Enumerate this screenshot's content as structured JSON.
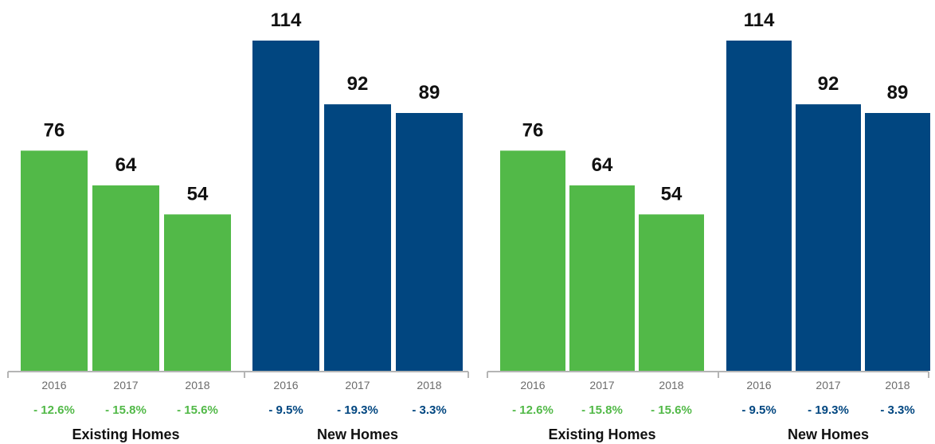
{
  "chart_data": [
    {
      "type": "bar",
      "groups": [
        {
          "name": "Existing Homes",
          "color": "#52b948",
          "categories": [
            "2016",
            "2017",
            "2018"
          ],
          "values": [
            76,
            64,
            54
          ],
          "changes": [
            "- 12.6%",
            "- 15.8%",
            "- 15.6%"
          ]
        },
        {
          "name": "New Homes",
          "color": "#014680",
          "categories": [
            "2016",
            "2017",
            "2018"
          ],
          "values": [
            114,
            92,
            89
          ],
          "changes": [
            "- 9.5%",
            "- 19.3%",
            "- 3.3%"
          ]
        }
      ],
      "ylim": [
        0,
        114
      ]
    },
    {
      "type": "bar",
      "groups": [
        {
          "name": "Existing Homes",
          "color": "#52b948",
          "categories": [
            "2016",
            "2017",
            "2018"
          ],
          "values": [
            76,
            64,
            54
          ],
          "changes": [
            "- 12.6%",
            "- 15.8%",
            "- 15.6%"
          ]
        },
        {
          "name": "New Homes",
          "color": "#014680",
          "categories": [
            "2016",
            "2017",
            "2018"
          ],
          "values": [
            114,
            92,
            89
          ],
          "changes": [
            "- 9.5%",
            "- 19.3%",
            "- 3.3%"
          ]
        }
      ],
      "ylim": [
        0,
        114
      ]
    }
  ],
  "colors": {
    "axis": "#b5b5b5",
    "year_text": "#6b6b6b",
    "value_text": "#111111"
  }
}
